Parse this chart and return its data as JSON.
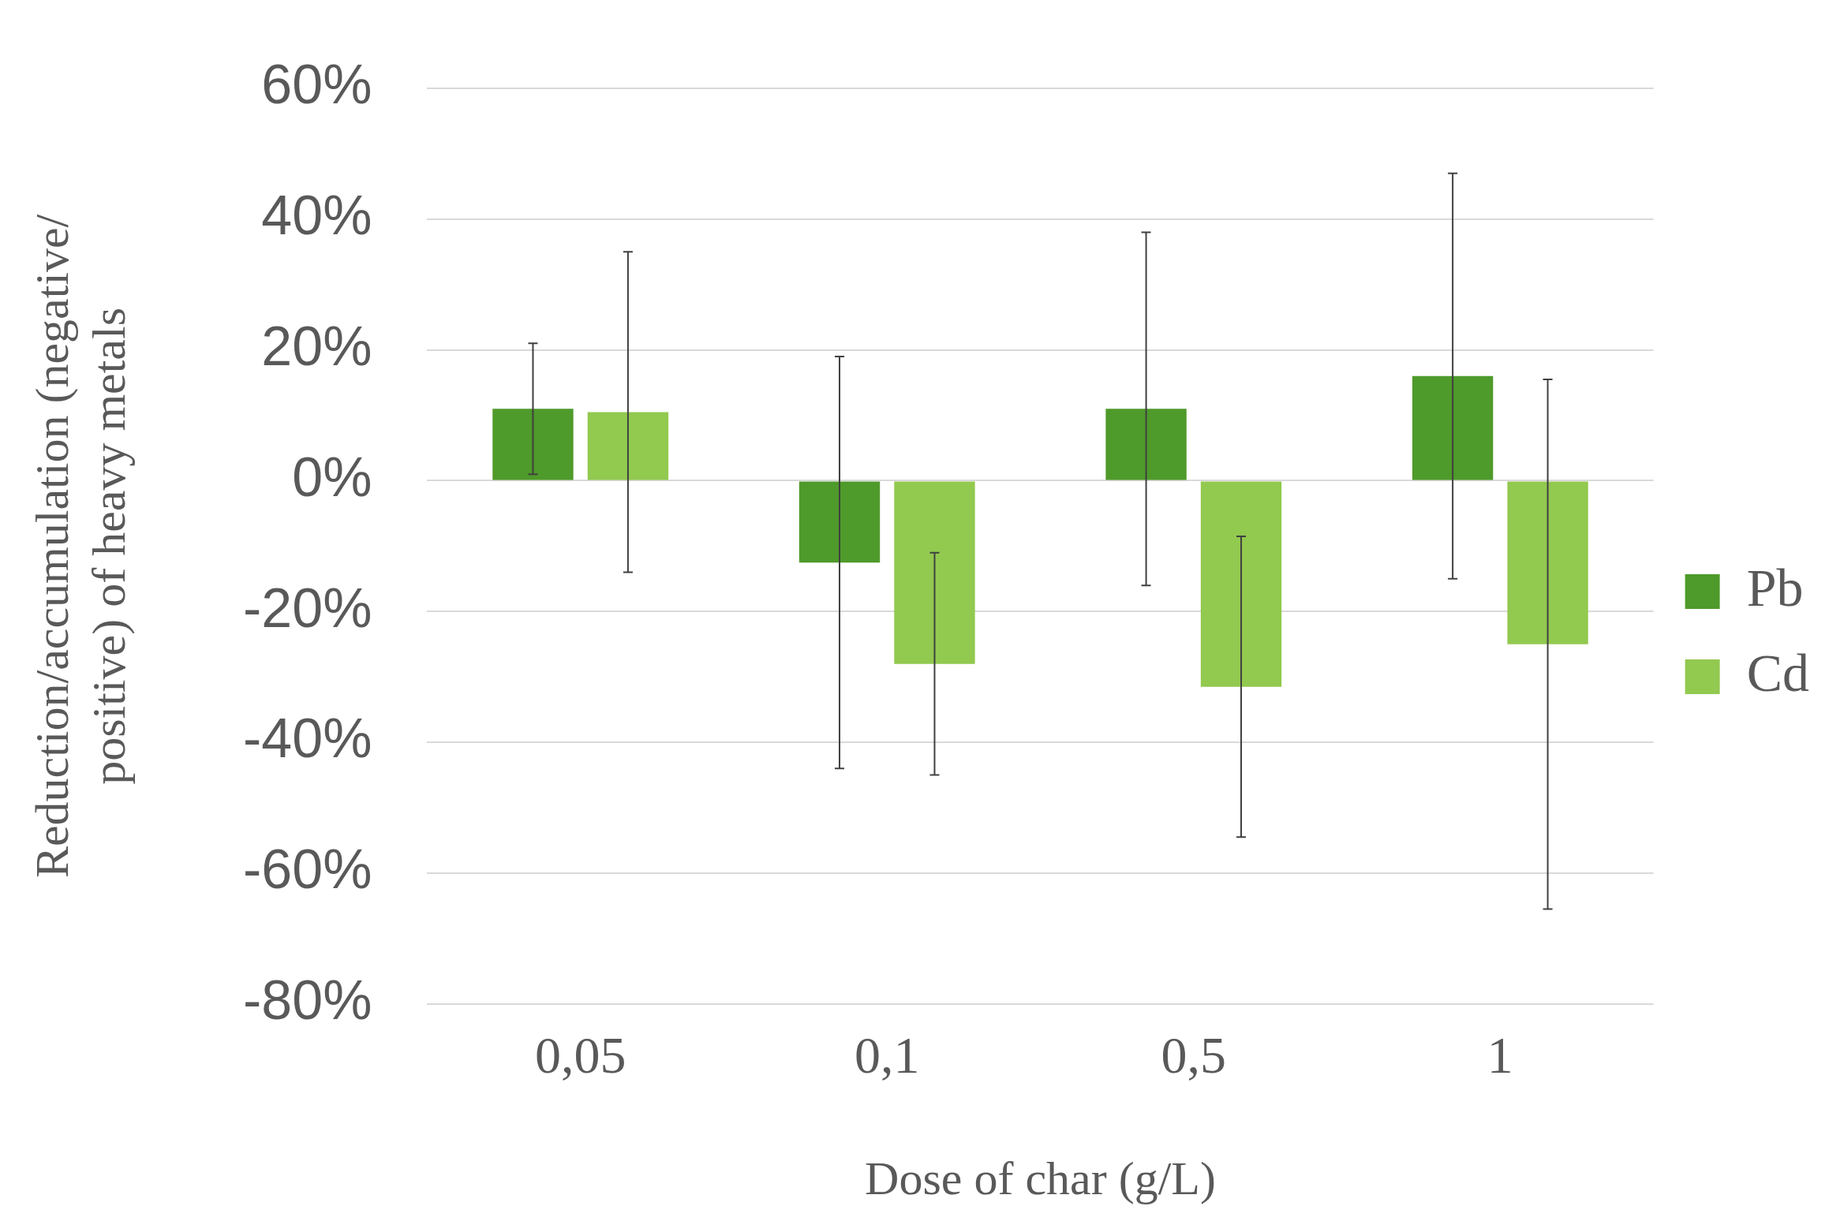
{
  "chart_data": {
    "type": "bar",
    "xlabel": "Dose of char (g/L)",
    "ylabel": "Reduction/accumulation (negative/ positive) of heavy metals",
    "categories": [
      "0,05",
      "0,1",
      "0,5",
      "1"
    ],
    "series": [
      {
        "name": "Pb",
        "color": "#4e9a2a",
        "values": [
          11,
          -12.5,
          11,
          16
        ],
        "errors": [
          10,
          31.5,
          27,
          31
        ]
      },
      {
        "name": "Cd",
        "color": "#92c94f",
        "values": [
          10.5,
          -28,
          -31.5,
          -25
        ],
        "errors": [
          24.5,
          17,
          23,
          40.5
        ]
      }
    ],
    "ylim": [
      -80,
      60
    ],
    "yticks": [
      {
        "value": -80,
        "label": "-80%"
      },
      {
        "value": -60,
        "label": "-60%"
      },
      {
        "value": -40,
        "label": "-40%"
      },
      {
        "value": -20,
        "label": "-20%"
      },
      {
        "value": 0,
        "label": "0%"
      },
      {
        "value": 20,
        "label": "20%"
      },
      {
        "value": 40,
        "label": "40%"
      },
      {
        "value": 60,
        "label": "60%"
      }
    ],
    "grid": "y",
    "legend": "right"
  }
}
